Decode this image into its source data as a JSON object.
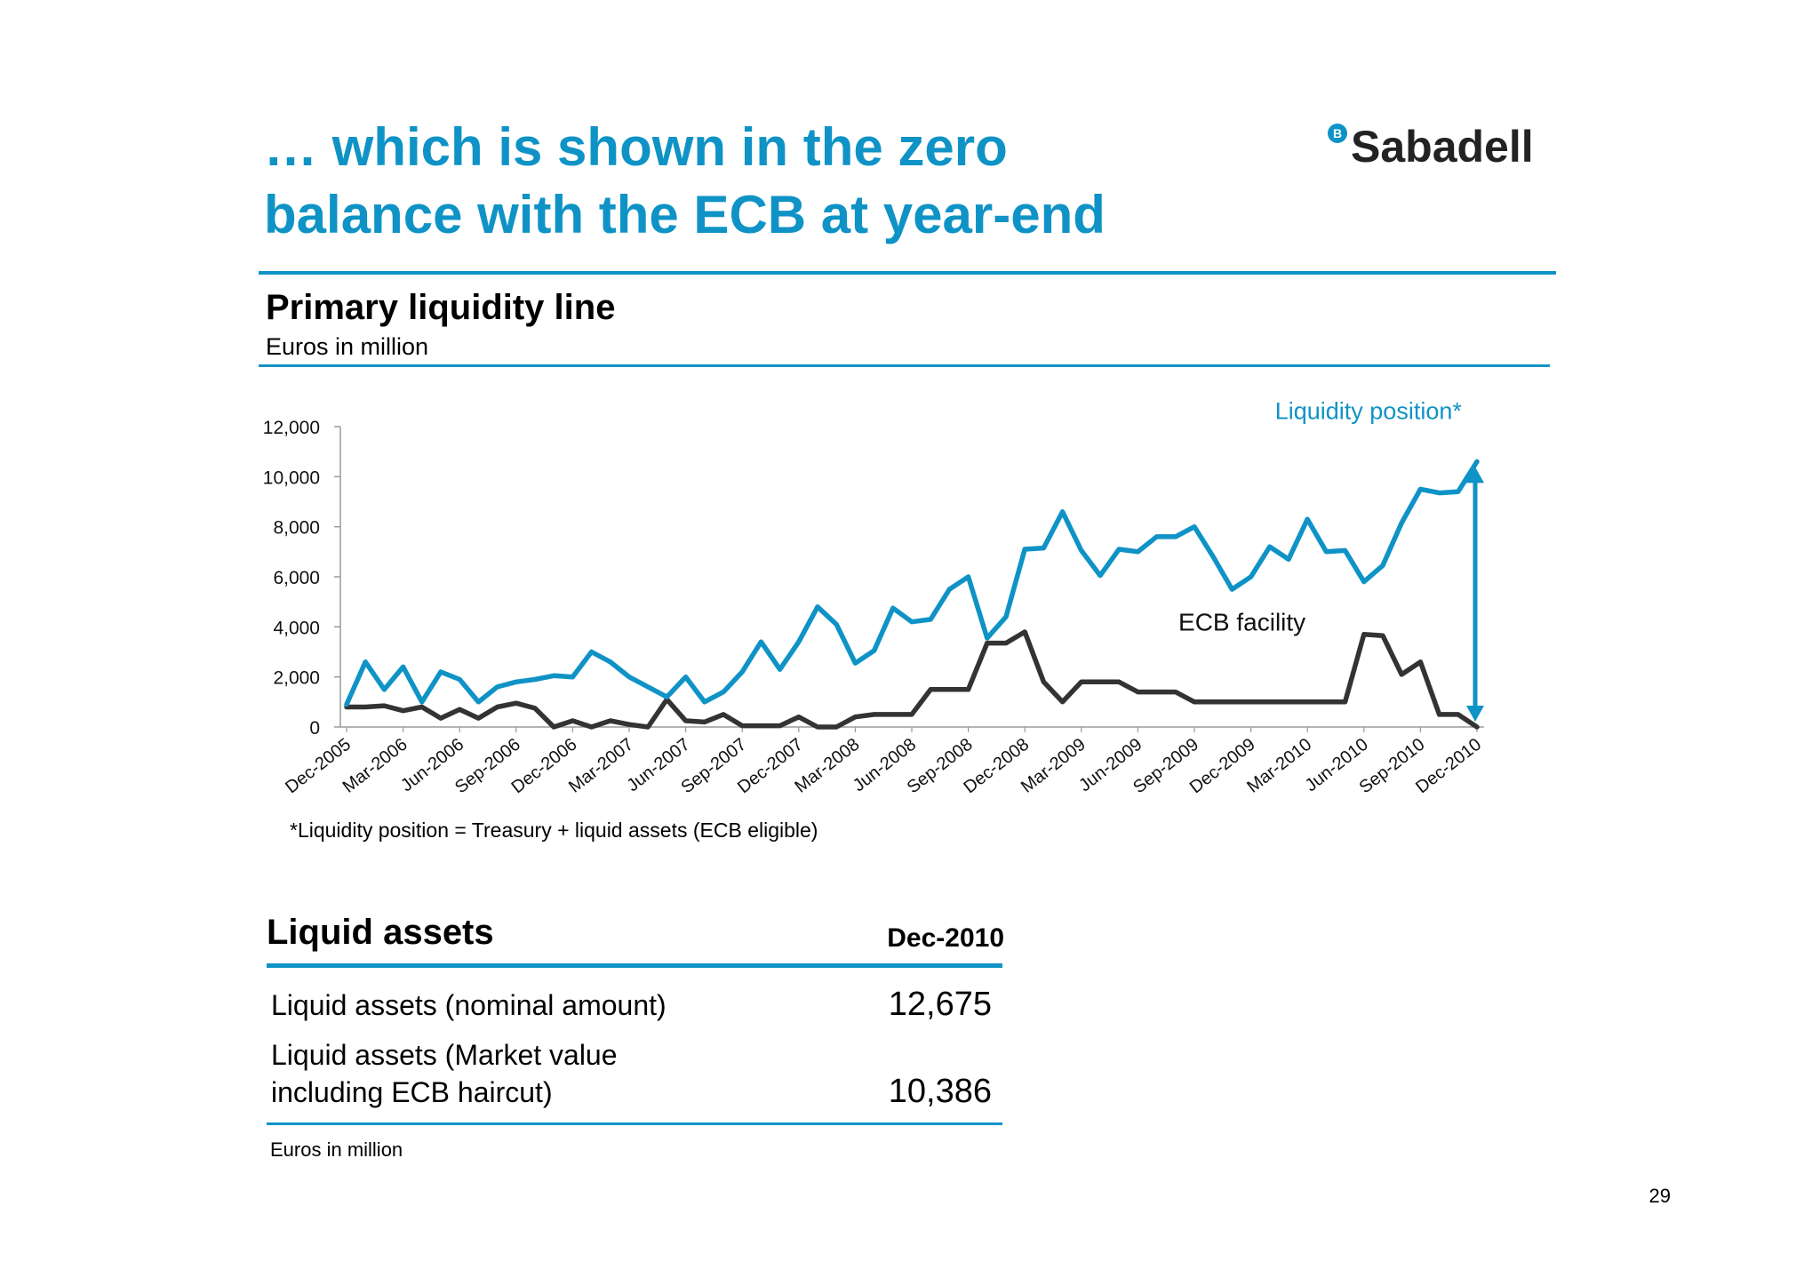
{
  "slide": {
    "title_line1": "… which is shown in the zero",
    "title_line2": "balance with the ECB at year-end",
    "logo_text": "Sabadell",
    "logo_mark": "B",
    "page_number": "29",
    "accent_color": "#0f93c6"
  },
  "chart_section": {
    "title": "Primary liquidity line",
    "units": "Euros in million",
    "footnote": "*Liquidity position = Treasury + liquid assets (ECB eligible)"
  },
  "chart_data": {
    "type": "line",
    "title": "Primary liquidity line",
    "subtitle": "Euros in million",
    "xlabel": "",
    "ylabel": "",
    "ylim": [
      0,
      12000
    ],
    "y_ticks": [
      "0",
      "2,000",
      "4,000",
      "6,000",
      "8,000",
      "10,000",
      "12,000"
    ],
    "y_tick_values": [
      0,
      2000,
      4000,
      6000,
      8000,
      10000,
      12000
    ],
    "x_tick_labels": [
      "Dec-2005",
      "Mar-2006",
      "Jun-2006",
      "Sep-2006",
      "Dec-2006",
      "Mar-2007",
      "Jun-2007",
      "Sep-2007",
      "Dec-2007",
      "Mar-2008",
      "Jun-2008",
      "Sep-2008",
      "Dec-2008",
      "Mar-2009",
      "Jun-2009",
      "Sep-2009",
      "Dec-2009",
      "Mar-2010",
      "Jun-2010",
      "Sep-2010",
      "Dec-2010"
    ],
    "grid": false,
    "legend": "none",
    "series": [
      {
        "name": "Liquidity position*",
        "color": "#0f93c6",
        "values": [
          900,
          2600,
          1500,
          2400,
          1000,
          2200,
          1900,
          1000,
          1600,
          1800,
          1900,
          2050,
          2000,
          3000,
          2600,
          2000,
          1600,
          1200,
          2000,
          1000,
          1400,
          2200,
          3400,
          2300,
          3400,
          4800,
          4100,
          2550,
          3050,
          4750,
          4200,
          4300,
          5500,
          6000,
          3550,
          4400,
          7100,
          7150,
          8600,
          7050,
          6050,
          7100,
          7000,
          7600,
          7600,
          8000,
          6800,
          5500,
          6000,
          7200,
          6700,
          8300,
          7000,
          7050,
          5800,
          6450,
          8150,
          9500,
          9350,
          9400,
          10600
        ]
      },
      {
        "name": "ECB facility",
        "color": "#333333",
        "values": [
          800,
          800,
          850,
          650,
          800,
          350,
          700,
          350,
          800,
          950,
          750,
          0,
          250,
          0,
          250,
          100,
          0,
          1100,
          250,
          200,
          500,
          50,
          50,
          50,
          400,
          0,
          0,
          400,
          500,
          500,
          500,
          1500,
          1500,
          1500,
          3350,
          3350,
          3800,
          1800,
          1000,
          1800,
          1800,
          1800,
          1400,
          1400,
          1400,
          1000,
          1000,
          1000,
          1000,
          1000,
          1000,
          1000,
          1000,
          1000,
          3700,
          3650,
          2100,
          2600,
          500,
          500,
          0
        ]
      }
    ],
    "annotations": [
      {
        "text": "ECB facility",
        "at": "Mar-2010",
        "value": 3850
      },
      {
        "text": "Liquidity position*",
        "at": "Jun-2010",
        "value": 12300
      },
      {
        "text": "double-arrow",
        "at": "Dec-2010",
        "from": 0,
        "to": 10600
      }
    ]
  },
  "liquid_assets": {
    "title": "Liquid assets",
    "column_header": "Dec-2010",
    "rows": [
      {
        "label": "Liquid assets (nominal amount)",
        "value": "12,675"
      },
      {
        "label_line1": "Liquid assets (Market value",
        "label_line2": "including ECB haircut)",
        "value": "10,386"
      }
    ],
    "units": "Euros in million"
  }
}
